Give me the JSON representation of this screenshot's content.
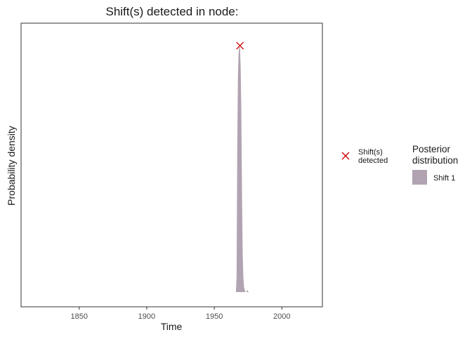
{
  "chart_data": {
    "type": "area",
    "title": "Shift(s) detected in node:",
    "xlabel": "Time",
    "ylabel": "Probability density",
    "xlim": [
      1807,
      2030
    ],
    "ylim": [
      0,
      1.05
    ],
    "x_ticks": [
      1850,
      1900,
      1950,
      2000
    ],
    "y_ticks": [],
    "grid": false,
    "series": [
      {
        "name": "Shift 1",
        "color": "#b1a3b1",
        "x": [
          1966,
          1966.5,
          1967,
          1967.5,
          1968,
          1968.5,
          1969,
          1969.5,
          1970,
          1970.5,
          1971,
          1971.5,
          1972,
          1972.5,
          1973,
          1973.5,
          1974,
          1974.5,
          1975,
          1975.5,
          1976
        ],
        "values": [
          0,
          0.06,
          0.58,
          0.86,
          0.95,
          0.98,
          0.97,
          0.9,
          0.72,
          0.4,
          0.15,
          0.06,
          0.02,
          0.01,
          0,
          0,
          0.004,
          0.008,
          0.004,
          0,
          0
        ]
      }
    ],
    "markers": [
      {
        "name": "Shift(s) detected",
        "x": 1969,
        "y": 0.98,
        "shape": "x",
        "color": "#cc0000"
      }
    ],
    "legend": {
      "placement": "right",
      "title": "Posterior distribution",
      "title_lines": [
        "Posterior",
        "distribution"
      ],
      "marker_label_lines": [
        "Shift(s)",
        "detected"
      ],
      "fill_label": "Shift 1"
    }
  }
}
